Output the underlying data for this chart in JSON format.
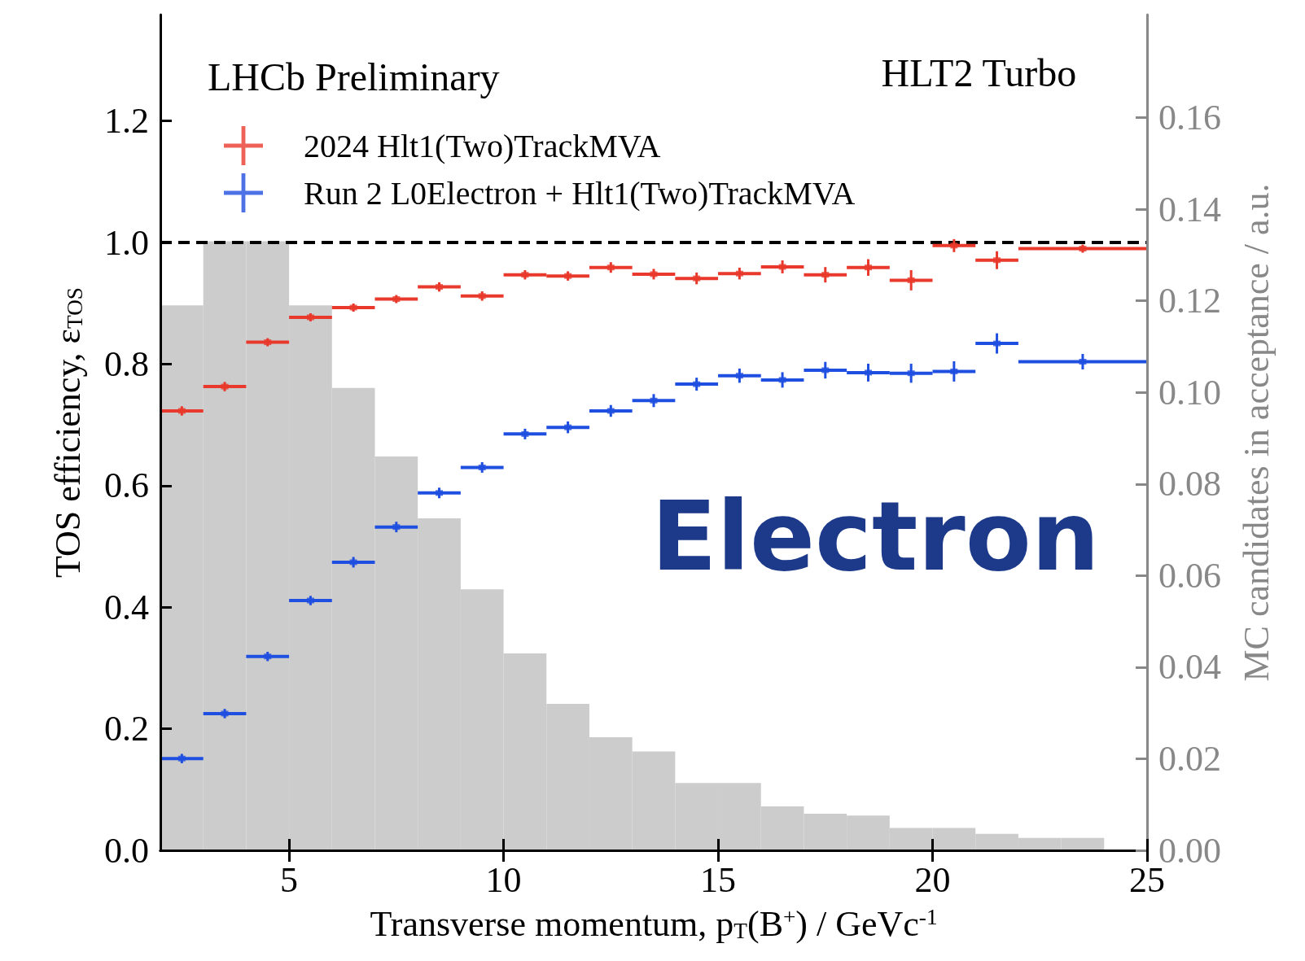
{
  "chart_data": {
    "type": "scatter",
    "xlabel": "Transverse momentum, p$_{T}$(B$^{+}$) / GeVc$^{-1}$",
    "ylabel": "TOS efficiency, ε$_{TOS}$",
    "y2label": "MC candidates in acceptance / a.u.",
    "annotations": [
      "LHCb Preliminary",
      "HLT2 Turbo",
      "Electron"
    ],
    "xlim": [
      2,
      25
    ],
    "xticks": [
      5,
      10,
      15,
      20,
      25
    ],
    "ylim": [
      0,
      1.375
    ],
    "yticks": [
      {
        "value": 0,
        "label": "0.0"
      },
      {
        "value": 0.2,
        "label": "0.2"
      },
      {
        "value": 0.4,
        "label": "0.4"
      },
      {
        "value": 0.6,
        "label": "0.6"
      },
      {
        "value": 0.8,
        "label": "0.8"
      },
      {
        "value": 1,
        "label": "1.0"
      },
      {
        "value": 1.2,
        "label": "1.2"
      }
    ],
    "y2lim": [
      0,
      0.1825
    ],
    "y2ticks": [
      {
        "value": 0,
        "label": "0.00"
      },
      {
        "value": 0.02,
        "label": "0.02"
      },
      {
        "value": 0.04,
        "label": "0.04"
      },
      {
        "value": 0.06,
        "label": "0.06"
      },
      {
        "value": 0.08,
        "label": "0.08"
      },
      {
        "value": 0.1,
        "label": "0.10"
      },
      {
        "value": 0.12,
        "label": "0.12"
      },
      {
        "value": 0.14,
        "label": "0.14"
      },
      {
        "value": 0.16,
        "label": "0.16"
      }
    ],
    "legend": "top left",
    "ref_lines": [
      {
        "axis": "y",
        "value": 1,
        "color": "#000000",
        "line_style": "dashed"
      }
    ],
    "series": [
      {
        "type": "histogram",
        "axis": "y2",
        "color": "#cccccc",
        "bins": [
          2,
          3,
          4,
          5,
          6,
          7,
          8,
          9,
          10,
          11,
          12,
          13,
          14,
          15,
          16,
          17,
          18,
          19,
          20,
          21,
          22,
          23,
          24,
          25
        ],
        "values": [
          0.119,
          0.133,
          0.133,
          0.119,
          0.101,
          0.086,
          0.0725,
          0.057,
          0.043,
          0.032,
          0.0247,
          0.0216,
          0.0147,
          0.0147,
          0.0096,
          0.008,
          0.0076,
          0.0049,
          0.0049,
          0.0036,
          0.0027,
          0.0027,
          0
        ]
      },
      {
        "name": "2024 Hlt1(Two)TrackMVA",
        "color": "#e8392c",
        "x": [
          2.5,
          3.5,
          4.5,
          5.5,
          6.5,
          7.5,
          8.5,
          9.5,
          10.5,
          11.5,
          12.5,
          13.5,
          14.5,
          15.5,
          16.5,
          17.5,
          18.5,
          19.5,
          20.5,
          21.5,
          23.5
        ],
        "values": [
          0.723,
          0.763,
          0.836,
          0.877,
          0.893,
          0.907,
          0.927,
          0.912,
          0.947,
          0.945,
          0.959,
          0.948,
          0.941,
          0.949,
          0.96,
          0.947,
          0.959,
          0.938,
          0.995,
          0.971,
          0.99
        ],
        "errors": [
          0.005,
          0.005,
          0.004,
          0.004,
          0.004,
          0.004,
          0.005,
          0.005,
          0.005,
          0.005,
          0.006,
          0.006,
          0.007,
          0.007,
          0.008,
          0.01,
          0.011,
          0.014,
          0.008,
          0.012,
          0.004
        ],
        "xerrors": [
          0.5,
          0.5,
          0.5,
          0.5,
          0.5,
          0.5,
          0.5,
          0.5,
          0.5,
          0.5,
          0.5,
          0.5,
          0.5,
          0.5,
          0.5,
          0.5,
          0.5,
          0.5,
          0.5,
          0.5,
          1.5
        ]
      },
      {
        "name": "Run 2 L0Electron + Hlt1(Two)TrackMVA",
        "color": "#1f4fe0",
        "x": [
          2.5,
          3.5,
          4.5,
          5.5,
          6.5,
          7.5,
          8.5,
          9.5,
          10.5,
          11.5,
          12.5,
          13.5,
          14.5,
          15.5,
          16.5,
          17.5,
          18.5,
          19.5,
          20.5,
          21.5,
          23.5
        ],
        "values": [
          0.151,
          0.225,
          0.319,
          0.411,
          0.474,
          0.532,
          0.588,
          0.63,
          0.685,
          0.696,
          0.723,
          0.74,
          0.767,
          0.781,
          0.774,
          0.79,
          0.786,
          0.785,
          0.788,
          0.834,
          0.804
        ],
        "errors": [
          0.005,
          0.005,
          0.005,
          0.005,
          0.006,
          0.006,
          0.006,
          0.006,
          0.006,
          0.007,
          0.007,
          0.008,
          0.008,
          0.009,
          0.01,
          0.011,
          0.012,
          0.013,
          0.014,
          0.014,
          0.01
        ],
        "xerrors": [
          0.5,
          0.5,
          0.5,
          0.5,
          0.5,
          0.5,
          0.5,
          0.5,
          0.5,
          0.5,
          0.5,
          0.5,
          0.5,
          0.5,
          0.5,
          0.5,
          0.5,
          0.5,
          0.5,
          0.5,
          1.5
        ]
      }
    ]
  }
}
